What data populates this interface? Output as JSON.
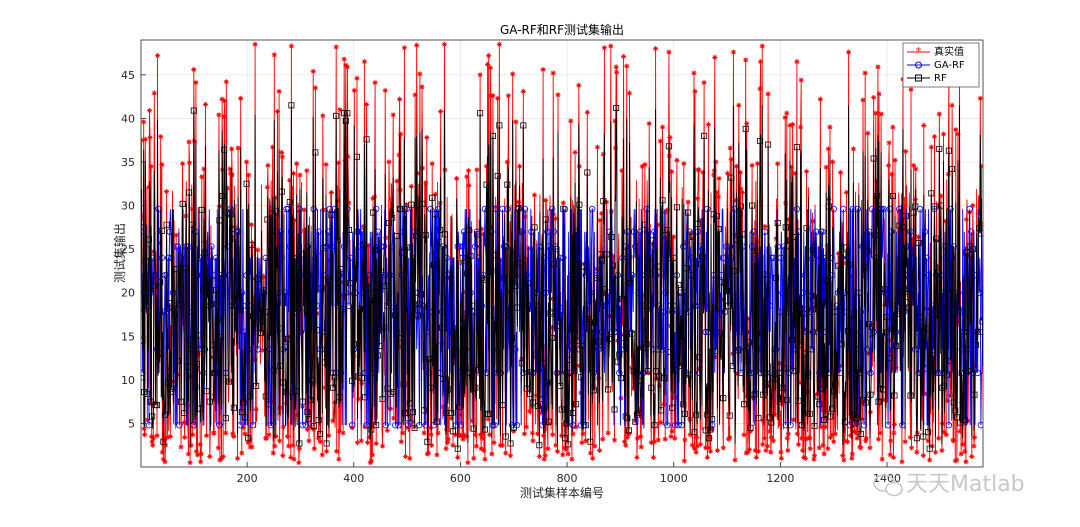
{
  "chart_data": {
    "type": "line",
    "title": "GA-RF和RF测试集输出",
    "xlabel": "测试集样本编号",
    "ylabel": "测试集输出",
    "xlim": [
      1,
      1580
    ],
    "ylim": [
      0,
      49
    ],
    "xticks": [
      200,
      400,
      600,
      800,
      1000,
      1200,
      1400
    ],
    "yticks": [
      5,
      10,
      15,
      20,
      25,
      30,
      35,
      40,
      45
    ],
    "grid": true,
    "legend_position": "top-right",
    "sample_count": 1580,
    "series": [
      {
        "name": "真实值",
        "color": "#ff0000",
        "marker": "asterisk",
        "y_range": [
          0.5,
          48.5
        ]
      },
      {
        "name": "GA-RF",
        "color": "#0000ff",
        "marker": "circle",
        "levels": [
          4.8,
          10.8,
          13.5,
          15.5,
          17.8,
          18.5,
          20.0,
          22.0,
          24.0,
          25.3,
          27.0,
          29.6
        ]
      },
      {
        "name": "RF",
        "color": "#000000",
        "marker": "square",
        "y_range": [
          1.0,
          41.5
        ]
      }
    ]
  },
  "watermark": {
    "text": "天天Matlab",
    "icon": "wechat-icon"
  }
}
